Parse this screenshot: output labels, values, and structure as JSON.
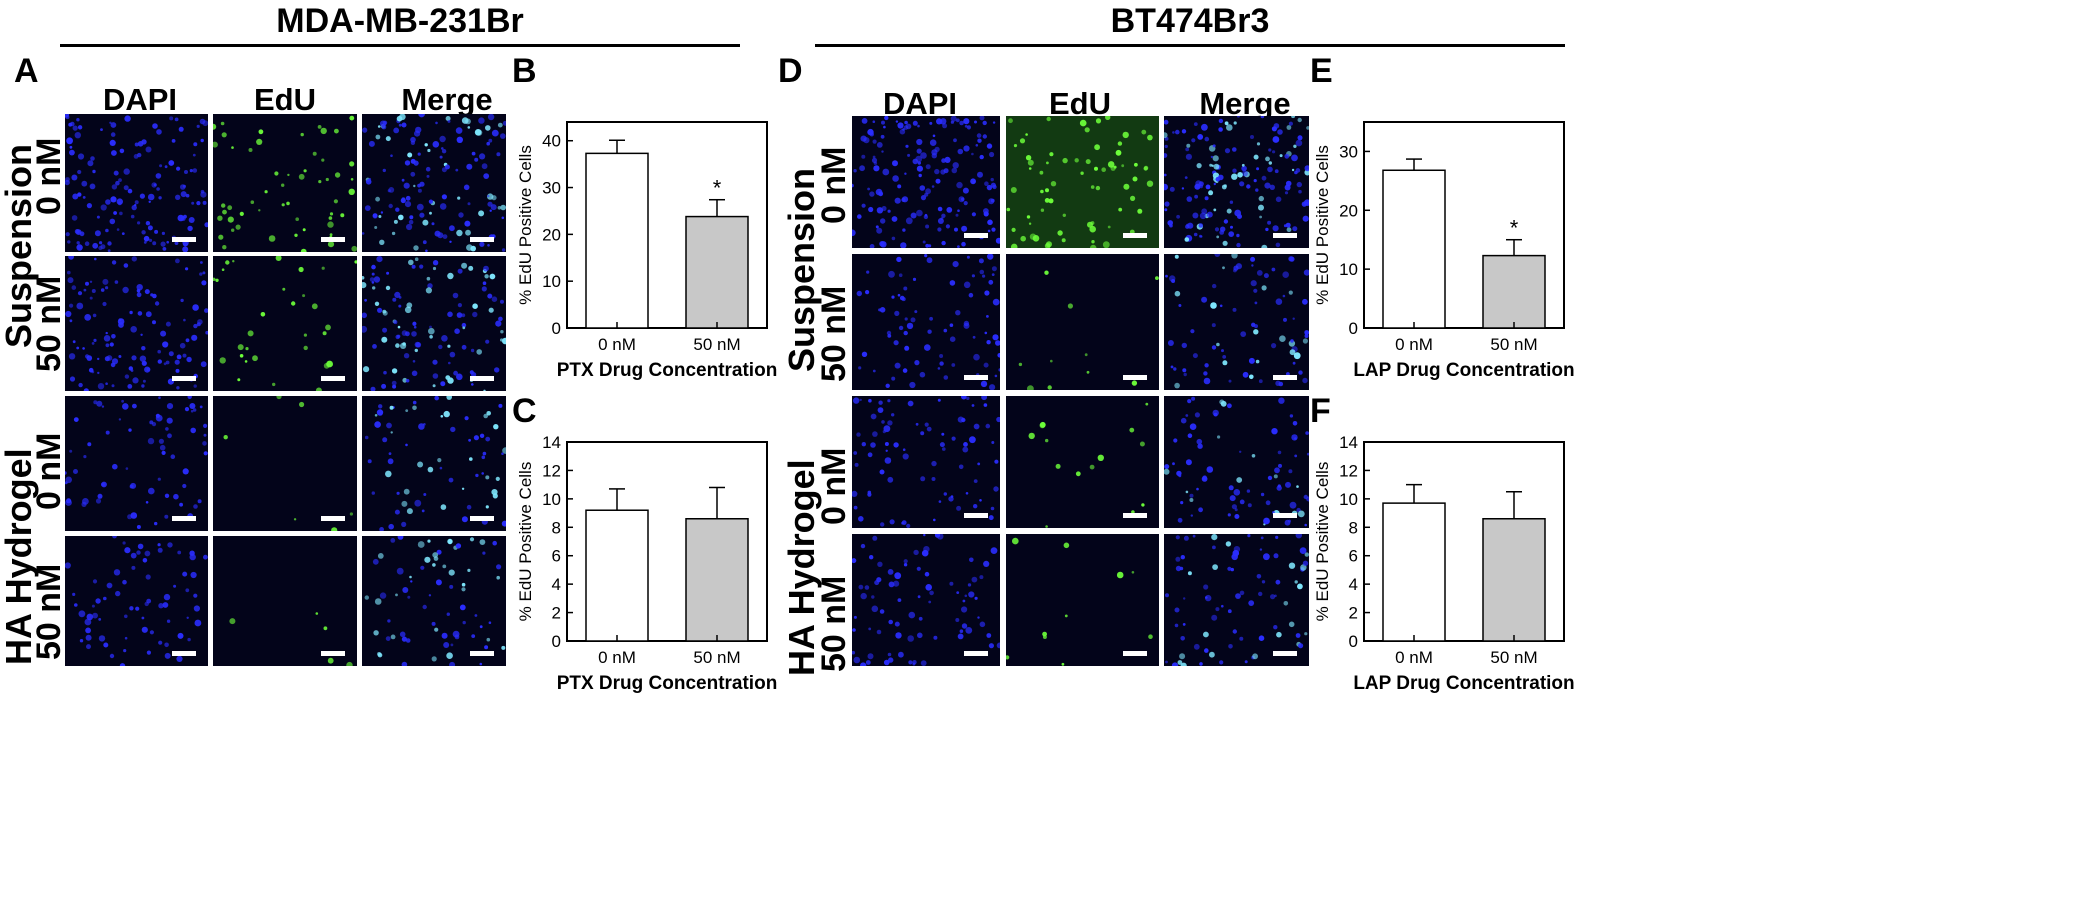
{
  "headers": {
    "left": "MDA-MB-231Br",
    "right": "BT474Br3"
  },
  "panel_letters": [
    "A",
    "B",
    "C",
    "D",
    "E",
    "F"
  ],
  "channels": [
    "DAPI",
    "EdU",
    "Merge"
  ],
  "row_groups": [
    "Suspension",
    "HA Hydrogel"
  ],
  "concentrations": [
    "0 nM",
    "50 nM"
  ],
  "colors": {
    "dapi": "#2a2dff",
    "edu": "#6dff3a",
    "merge": "#7fe8ff",
    "bar_control": "#ffffff",
    "bar_treated": "#c8c8c8"
  },
  "chart_data": [
    {
      "panel": "B",
      "type": "bar",
      "categories": [
        "0 nM",
        "50 nM"
      ],
      "values": [
        37.3,
        23.8
      ],
      "errors": [
        2.8,
        3.6
      ],
      "significance": [
        "",
        "*"
      ],
      "xlabel": "PTX Drug Concentration",
      "ylabel": "% EdU Positive Cells",
      "ylim": [
        0,
        44
      ],
      "yticks": [
        0,
        10,
        20,
        30,
        40
      ]
    },
    {
      "panel": "C",
      "type": "bar",
      "categories": [
        "0 nM",
        "50 nM"
      ],
      "values": [
        9.2,
        8.6
      ],
      "errors": [
        1.5,
        2.2
      ],
      "significance": [
        "",
        ""
      ],
      "xlabel": "PTX Drug Concentration",
      "ylabel": "% EdU Positive Cells",
      "ylim": [
        0,
        14
      ],
      "yticks": [
        0,
        2,
        4,
        6,
        8,
        10,
        12,
        14
      ]
    },
    {
      "panel": "E",
      "type": "bar",
      "categories": [
        "0 nM",
        "50 nM"
      ],
      "values": [
        26.8,
        12.3
      ],
      "errors": [
        1.9,
        2.7
      ],
      "significance": [
        "",
        "*"
      ],
      "xlabel": "LAP Drug Concentration",
      "ylabel": "% EdU Positive Cells",
      "ylim": [
        0,
        35
      ],
      "yticks": [
        0,
        10,
        20,
        30
      ]
    },
    {
      "panel": "F",
      "type": "bar",
      "categories": [
        "0 nM",
        "50 nM"
      ],
      "values": [
        9.7,
        8.6
      ],
      "errors": [
        1.3,
        1.9
      ],
      "significance": [
        "",
        ""
      ],
      "xlabel": "LAP Drug Concentration",
      "ylabel": "% EdU Positive Cells",
      "ylim": [
        0,
        14
      ],
      "yticks": [
        0,
        2,
        4,
        6,
        8,
        10,
        12,
        14
      ]
    }
  ]
}
